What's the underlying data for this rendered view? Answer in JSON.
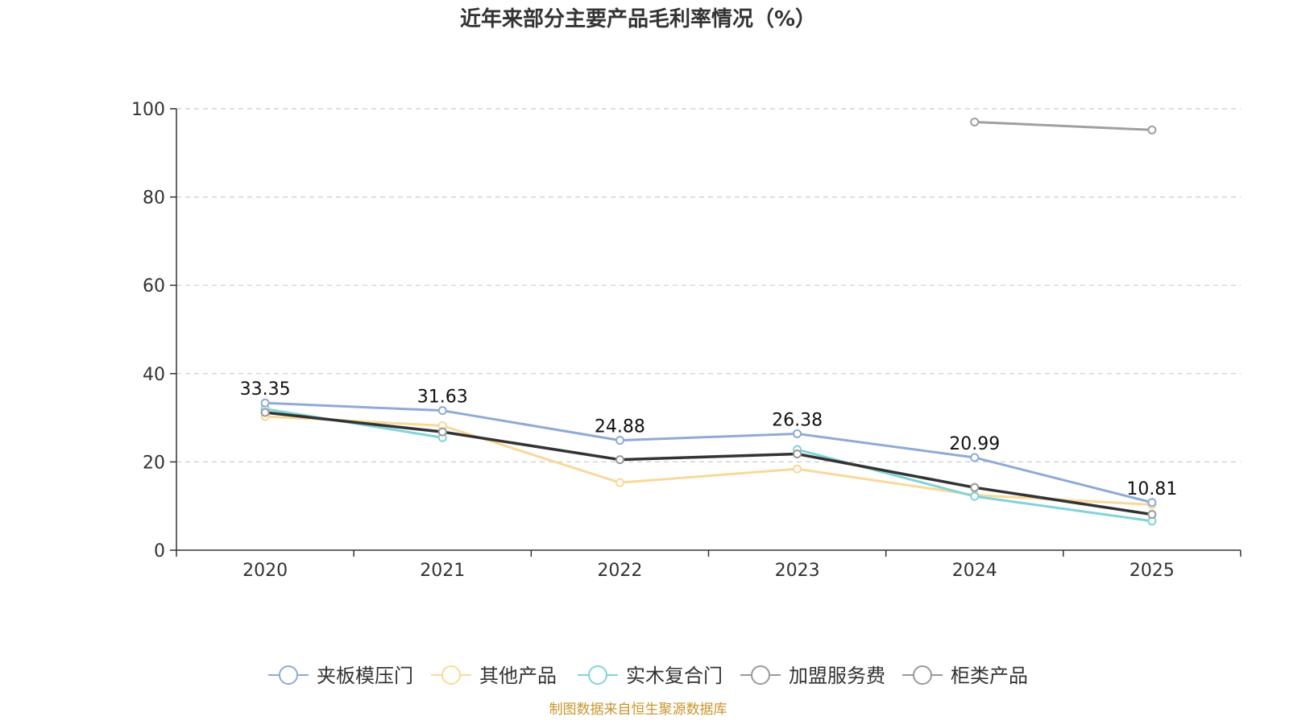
{
  "chart_data": {
    "type": "line",
    "title": "近年来部分主要产品毛利率情况（%）",
    "xlabel": "",
    "ylabel": "",
    "categories": [
      "2020",
      "2021",
      "2022",
      "2023",
      "2024",
      "2025"
    ],
    "ylim": [
      0,
      100
    ],
    "yticks": [
      0,
      20,
      40,
      60,
      80,
      100
    ],
    "grid": true,
    "legend_position": "bottom",
    "series": [
      {
        "name": "夹板模压门",
        "color": "#8eaad6",
        "values": [
          33.35,
          31.63,
          24.88,
          26.38,
          20.99,
          10.81
        ],
        "show_labels": true
      },
      {
        "name": "其他产品",
        "color": "#f8d99a",
        "values": [
          30.3,
          28.2,
          15.3,
          18.4,
          12.5,
          10.3
        ],
        "show_labels": false
      },
      {
        "name": "实木复合门",
        "color": "#80d4d8",
        "values": [
          32.0,
          25.5,
          null,
          22.8,
          12.2,
          6.6
        ],
        "show_labels": false
      },
      {
        "name": "加盟服务费",
        "color": "#333333",
        "values": [
          31.2,
          26.8,
          20.5,
          21.8,
          14.2,
          8.1
        ],
        "show_labels": false
      },
      {
        "name": "柜类产品",
        "color": "#a0a0a0",
        "values": [
          null,
          null,
          null,
          null,
          97.0,
          95.2
        ],
        "show_labels": false
      }
    ]
  },
  "source": "制图数据来自恒生聚源数据库"
}
